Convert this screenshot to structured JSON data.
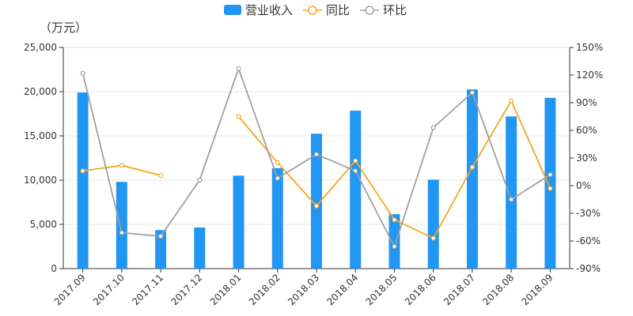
{
  "chart_data": {
    "type": "bar",
    "unit_label": "（万元）",
    "categories": [
      "2017.09",
      "2017.10",
      "2017.11",
      "2017.12",
      "2018.01",
      "2018.02",
      "2018.03",
      "2018.04",
      "2018.05",
      "2018.06",
      "2018.07",
      "2018.08",
      "2018.09"
    ],
    "y_left": {
      "min": 0,
      "max": 25000,
      "ticks": [
        0,
        5000,
        10000,
        15000,
        20000,
        25000
      ],
      "tick_labels": [
        "0",
        "5,000",
        "10,000",
        "15,000",
        "20,000",
        "25,000"
      ]
    },
    "y_right": {
      "min": -90,
      "max": 150,
      "ticks": [
        -90,
        -60,
        -30,
        0,
        30,
        60,
        90,
        120,
        150
      ],
      "tick_labels": [
        "-90%",
        "-60%",
        "-30%",
        "0%",
        "30%",
        "60%",
        "90%",
        "120%",
        "150%"
      ]
    },
    "series": [
      {
        "name": "营业收入",
        "type": "bar",
        "axis": "left",
        "color": "#2196f3",
        "values": [
          19900,
          9800,
          4350,
          4650,
          10500,
          11350,
          15250,
          17850,
          6150,
          10050,
          20250,
          17200,
          19300
        ]
      },
      {
        "name": "同比",
        "type": "line",
        "axis": "right",
        "color": "#f5a623",
        "values": [
          16,
          22,
          11,
          null,
          75,
          25,
          -22,
          27,
          -37,
          -57,
          20,
          92,
          -3
        ]
      },
      {
        "name": "环比",
        "type": "line",
        "axis": "right",
        "color": "#a0a0a0",
        "values": [
          122,
          -51,
          -55,
          6,
          127,
          8,
          34,
          16,
          -66,
          63,
          101,
          -15,
          12
        ]
      }
    ],
    "legend_position": "top",
    "grid": "horizontal"
  }
}
